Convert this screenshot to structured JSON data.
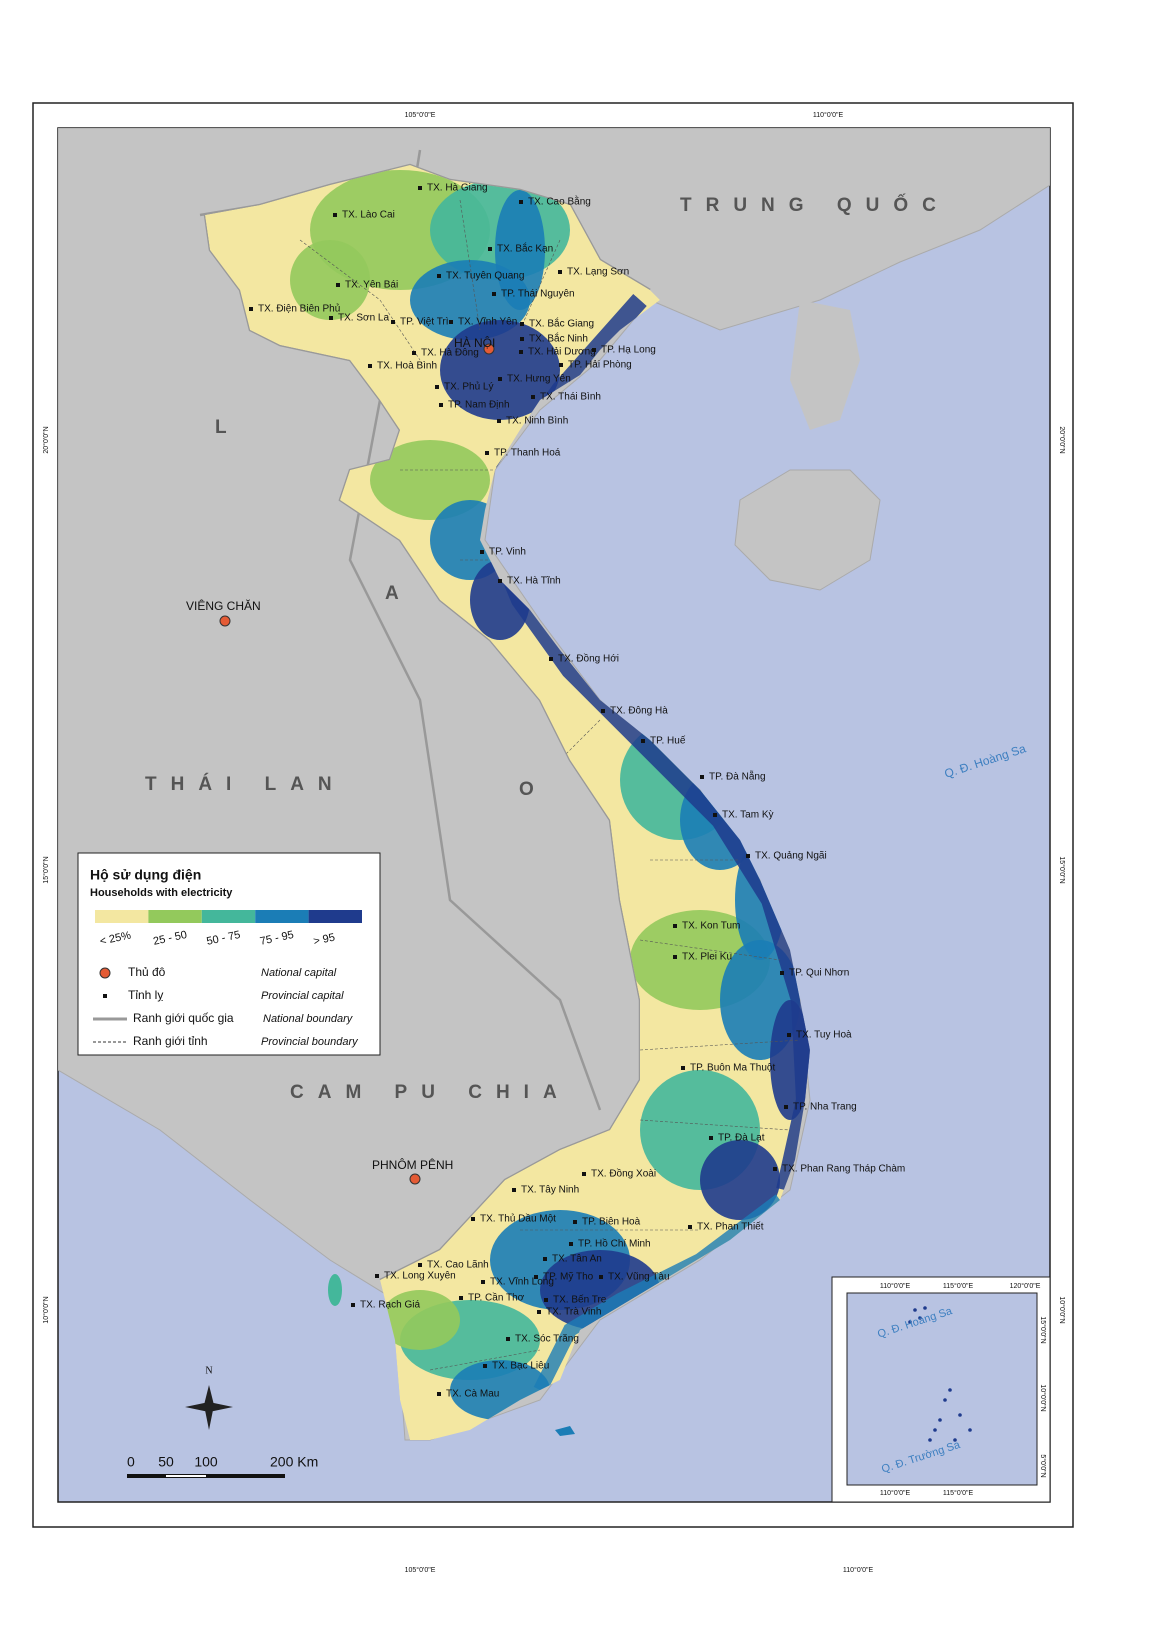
{
  "graticule": {
    "top": [
      "105°0'0\"E",
      "110°0'0\"E"
    ],
    "bottom": [
      "105°0'0\"E",
      "110°0'0\"E"
    ],
    "left": [
      "20°0'0\"N",
      "15°0'0\"N",
      "10°0'0\"N"
    ],
    "right": [
      "20°0'0\"N",
      "15°0'0\"N",
      "10°0'0\"N"
    ]
  },
  "countries": [
    "TRUNG QUỐC",
    "THÁI LAN",
    "CAM PU CHIA"
  ],
  "laos_letters": [
    "L",
    "A",
    "O"
  ],
  "capitals": [
    "HÀ NỘI",
    "VIÊNG CHĂN",
    "PHNÔM PÊNH"
  ],
  "provincial_capitals": [
    "TX. Hà Giang",
    "TX. Cao Bằng",
    "TX. Lào Cai",
    "TX. Bắc Kạn",
    "TX. Tuyên Quang",
    "TX. Lạng Sơn",
    "TX. Yên Bái",
    "TP. Thái Nguyên",
    "TX. Điện Biên Phủ",
    "TX. Sơn La",
    "TP. Việt Trì",
    "TX. Vĩnh Yên",
    "TX. Bắc Giang",
    "TX. Bắc Ninh",
    "TP. Hạ Long",
    "TX. Hà Đông",
    "TX. Hải Dương",
    "TX. Hoà Bình",
    "TP. Hải Phòng",
    "TX. Hưng Yên",
    "TX. Phủ Lý",
    "TX. Thái Bình",
    "TP. Nam Định",
    "TX. Ninh Bình",
    "TP. Thanh Hoá",
    "TP. Vinh",
    "TX. Hà Tĩnh",
    "TX. Đồng Hới",
    "TX. Đông Hà",
    "TP. Huế",
    "TP. Đà Nẵng",
    "TX. Tam Kỳ",
    "TX. Quảng Ngãi",
    "TX. Kon Tum",
    "TX. Plei Ku",
    "TP. Qui Nhơn",
    "TX. Tuy Hoà",
    "TP. Buôn Ma Thuột",
    "TP. Nha Trang",
    "TP. Đà Lạt",
    "TX. Phan Rang Tháp Chàm",
    "TX. Đồng Xoài",
    "TX. Tây Ninh",
    "TP. Biên Hoà",
    "TX. Thủ Dầu Một",
    "TX. Phan Thiết",
    "TP. Hồ Chí Minh",
    "TX. Tân An",
    "TX. Cao Lãnh",
    "TX. Long Xuyên",
    "TX. Vĩnh Long",
    "TP. Mỹ Tho",
    "TX. Vũng Tàu",
    "TP. Cần Thơ",
    "TX. Bến Tre",
    "TX. Rạch Giá",
    "TX. Trà Vinh",
    "TX. Sóc Trăng",
    "TX. Bạc Liêu",
    "TX. Cà Mau"
  ],
  "islands": [
    "Q. Đ. Hoàng Sa"
  ],
  "legend": {
    "title": "Hộ sử dụng điện",
    "subtitle": "Households with electricity",
    "classes": [
      {
        "label": "< 25%",
        "color": "#f3e7a1"
      },
      {
        "label": "25 - 50",
        "color": "#93c95c"
      },
      {
        "label": "50 - 75",
        "color": "#44b79b"
      },
      {
        "label": "75 - 95",
        "color": "#1b7db6"
      },
      {
        "label": "> 95",
        "color": "#1f3b8d"
      }
    ],
    "symbols": [
      {
        "vi": "Thủ đô",
        "en": "National capital"
      },
      {
        "vi": "Tỉnh lỵ",
        "en": "Provincial capital"
      },
      {
        "vi": "Ranh giới quốc gia",
        "en": "National boundary"
      },
      {
        "vi": "Ranh giới tỉnh",
        "en": "Provincial boundary"
      }
    ]
  },
  "scale_bar": [
    "0",
    "50",
    "100",
    "200 Km"
  ],
  "north": "N",
  "inset": {
    "top": [
      "110°0'0\"E",
      "115°0'0\"E",
      "120°0'0\"E"
    ],
    "bottom": [
      "110°0'0\"E",
      "115°0'0\"E"
    ],
    "right": [
      "15°0'0\"N",
      "10°0'0\"N",
      "5°0'0\"N"
    ],
    "labels": [
      "Q. Đ. Hoàng Sa",
      "Q. Đ. Trường Sa"
    ]
  }
}
